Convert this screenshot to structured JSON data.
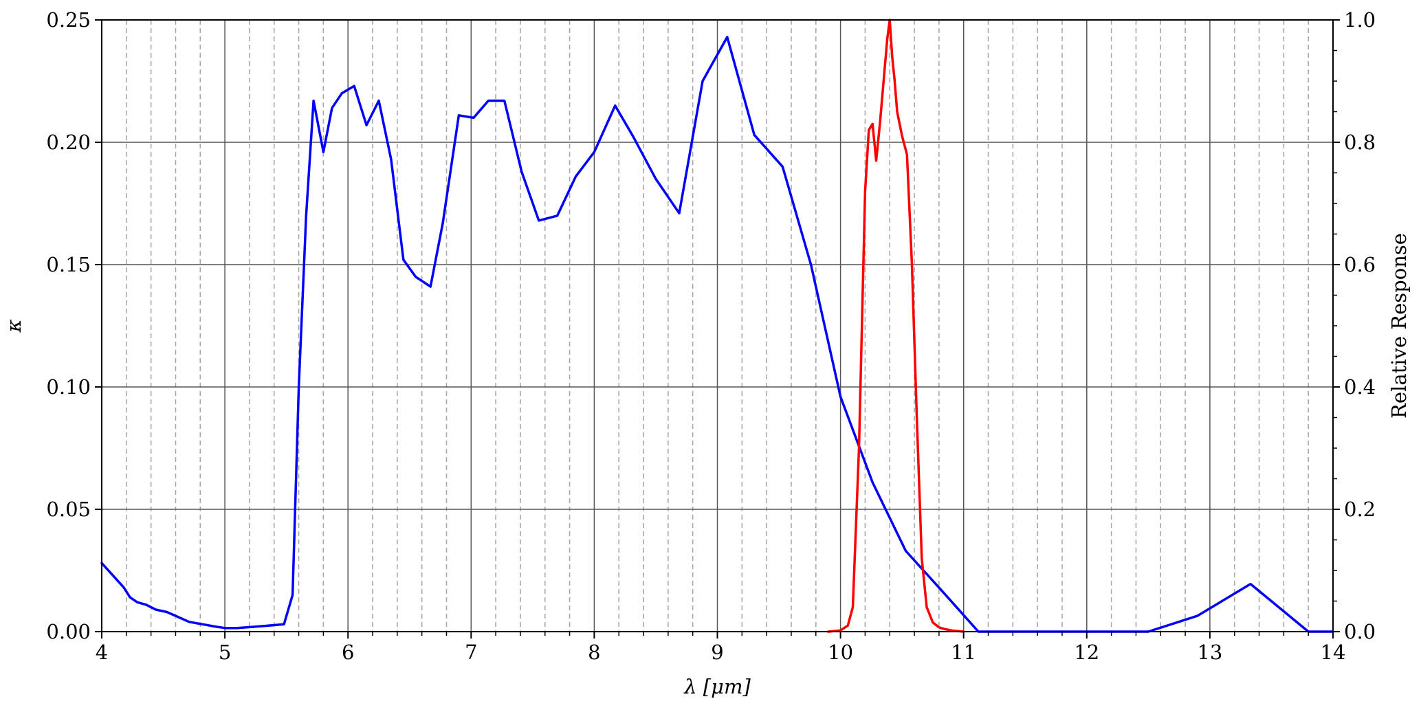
{
  "chart_data": {
    "type": "line",
    "xlabel": "λ [μm]",
    "ylabel_left": "κ",
    "ylabel_right": "Relative Response",
    "xlim": [
      4,
      14
    ],
    "ylim_left": [
      0,
      0.25
    ],
    "ylim_right": [
      0,
      1.0
    ],
    "x_ticks": [
      4,
      5,
      6,
      7,
      8,
      9,
      10,
      11,
      12,
      13,
      14
    ],
    "y_left_ticks": [
      "0.00",
      "0.05",
      "0.10",
      "0.15",
      "0.20",
      "0.25"
    ],
    "y_right_ticks": [
      "0.0",
      "0.2",
      "0.4",
      "0.6",
      "0.8",
      "1.0"
    ],
    "grid": true,
    "minor_grid_x_step": 0.2,
    "series": [
      {
        "axis": "left",
        "color": "#0000ff",
        "x": [
          4.0,
          4.09,
          4.18,
          4.23,
          4.29,
          4.36,
          4.44,
          4.53,
          4.62,
          4.71,
          4.82,
          4.93,
          5.0,
          5.1,
          5.24,
          5.36,
          5.48,
          5.55,
          5.6,
          5.66,
          5.72,
          5.8,
          5.87,
          5.95,
          6.05,
          6.15,
          6.25,
          6.35,
          6.45,
          6.55,
          6.67,
          6.77,
          6.9,
          7.02,
          7.14,
          7.27,
          7.41,
          7.55,
          7.7,
          7.85,
          8.0,
          8.17,
          8.32,
          8.5,
          8.69,
          8.88,
          9.08,
          9.3,
          9.53,
          9.76,
          10.0,
          10.26,
          10.53,
          10.8,
          11.12,
          12.5,
          12.9,
          13.33,
          13.8,
          14.0
        ],
        "y": [
          0.028,
          0.023,
          0.018,
          0.014,
          0.012,
          0.011,
          0.009,
          0.008,
          0.006,
          0.004,
          0.003,
          0.002,
          0.0015,
          0.0015,
          0.002,
          0.0025,
          0.003,
          0.015,
          0.1,
          0.17,
          0.217,
          0.196,
          0.214,
          0.22,
          0.223,
          0.207,
          0.217,
          0.193,
          0.152,
          0.145,
          0.141,
          0.167,
          0.211,
          0.21,
          0.217,
          0.217,
          0.188,
          0.168,
          0.17,
          0.186,
          0.196,
          0.215,
          0.202,
          0.185,
          0.171,
          0.225,
          0.243,
          0.203,
          0.19,
          0.15,
          0.096,
          0.061,
          0.033,
          0.018,
          0.0,
          0.0,
          0.0065,
          0.0195,
          0.0,
          0.0
        ]
      },
      {
        "axis": "right",
        "color": "#ff0000",
        "x": [
          9.9,
          10.0,
          10.06,
          10.1,
          10.15,
          10.2,
          10.23,
          10.26,
          10.29,
          10.32,
          10.35,
          10.38,
          10.4,
          10.42,
          10.44,
          10.46,
          10.5,
          10.54,
          10.58,
          10.62,
          10.66,
          10.7,
          10.75,
          10.8,
          10.85,
          10.9,
          11.0
        ],
        "y": [
          0.0,
          0.002,
          0.01,
          0.04,
          0.3,
          0.72,
          0.82,
          0.83,
          0.77,
          0.83,
          0.9,
          0.97,
          1.0,
          0.94,
          0.9,
          0.85,
          0.81,
          0.78,
          0.6,
          0.35,
          0.12,
          0.04,
          0.015,
          0.007,
          0.004,
          0.002,
          0.0
        ]
      }
    ]
  }
}
